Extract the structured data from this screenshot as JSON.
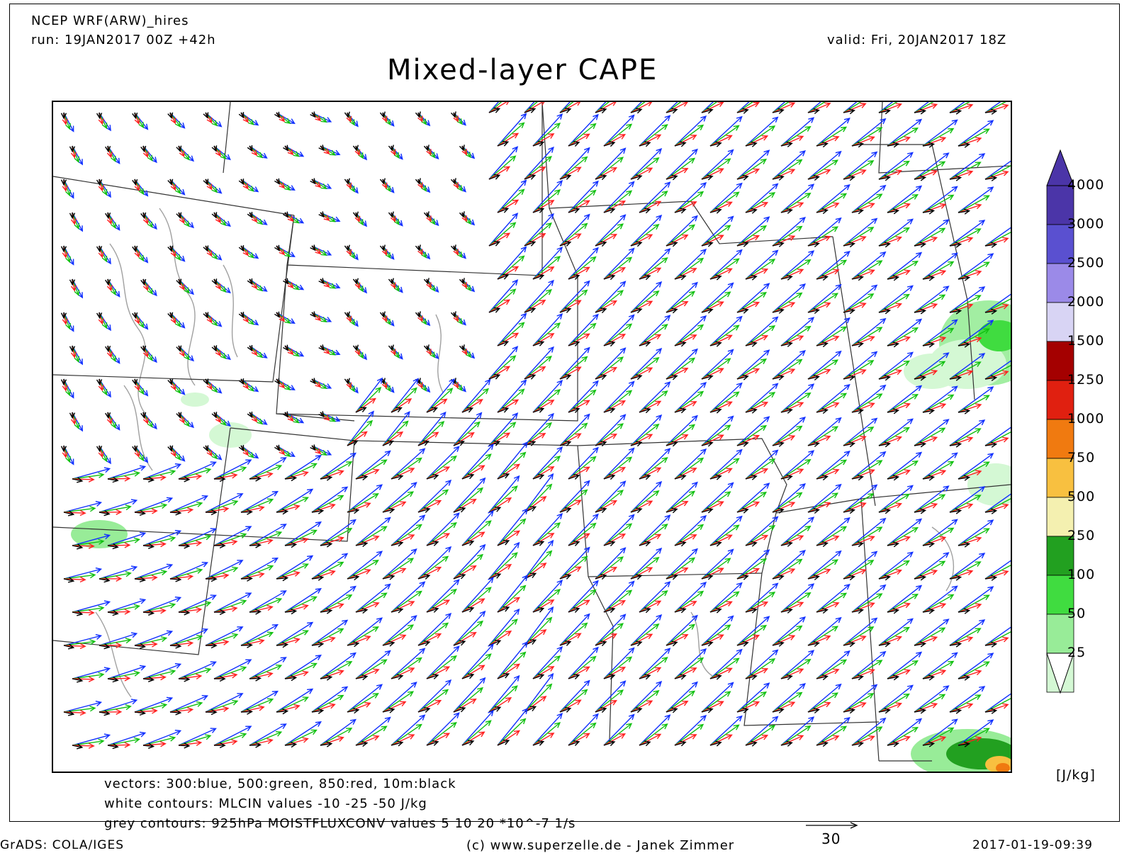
{
  "header": {
    "model": "NCEP WRF(ARW)_hires",
    "run": "run: 19JAN2017 00Z +42h",
    "valid": "valid: Fri, 20JAN2017 18Z",
    "title": "Mixed-layer CAPE"
  },
  "legend_lines": {
    "vectors": "vectors: 300:blue, 500:green, 850:red, 10m:black",
    "white_contours": "white contours: MLCIN values -10 -25 -50 J/kg",
    "grey_contours": "grey contours: 925hPa MOISTFLUXCONV values 5 10 20 *10^-7 1/s"
  },
  "footer": {
    "software": "GrADS: COLA/IGES",
    "credit": "(c) www.superzelle.de - Janek Zimmer",
    "timestamp": "2017-01-19-09:39",
    "vector_scale": "30"
  },
  "colorbar": {
    "units": "[J/kg]",
    "levels": [
      "4000",
      "3000",
      "2500",
      "2000",
      "1500",
      "1250",
      "1000",
      "750",
      "500",
      "250",
      "100",
      "50",
      "25"
    ],
    "colors": [
      "#4b35a8",
      "#5a50d0",
      "#9b8ae8",
      "#d8d4f4",
      "#a40000",
      "#e02010",
      "#f07a10",
      "#f8c040",
      "#f4f0b0",
      "#22a020",
      "#40dc40",
      "#98ec98",
      "#d4f8d4"
    ]
  },
  "vector_colors": {
    "300hPa": "#1030ff",
    "500hPa": "#10c010",
    "850hPa": "#ff2020",
    "10m": "#000000"
  }
}
